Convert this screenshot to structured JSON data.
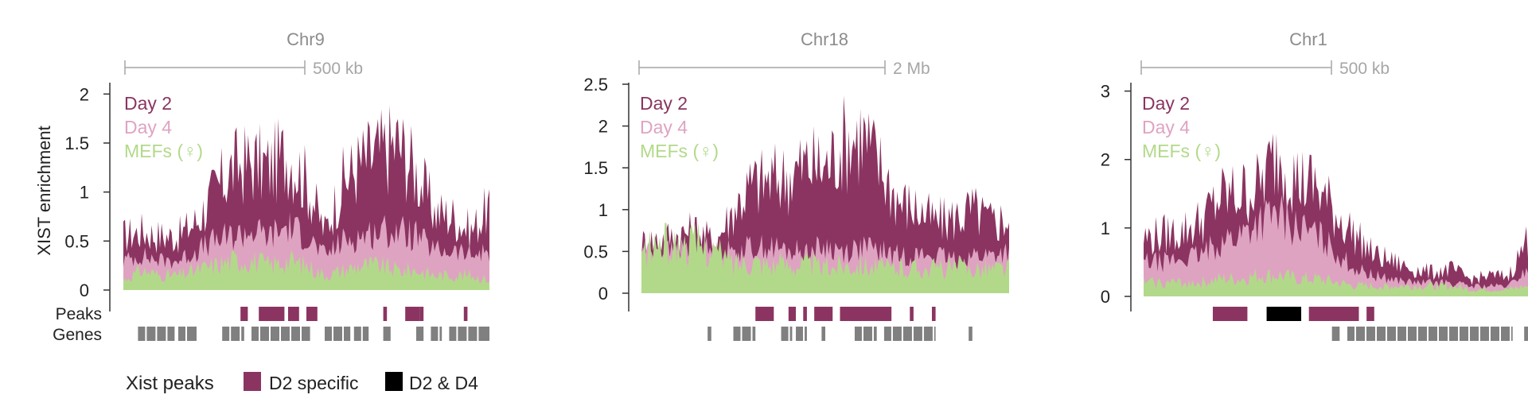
{
  "colors": {
    "day2": "#8b3461",
    "day4": "#dfa3c2",
    "mefs": "#b2d98a",
    "d2_specific": "#8b3461",
    "d2_d4": "#000000",
    "genes": "#808080",
    "axis": "#333333",
    "scale": "#a6a6a6",
    "text": "#222222"
  },
  "row_labels": {
    "peaks": "Peaks",
    "genes": "Genes"
  },
  "y_axis_label": "XIST enrichment",
  "legend": {
    "title": "Xist peaks",
    "d2_specific": "D2 specific",
    "d2_d4": "D2 & D4"
  },
  "chart_data": [
    {
      "type": "area",
      "title": "Chr9",
      "scale_bar": "500 kb",
      "ylabel": "XIST enrichment",
      "ylim": [
        0,
        2.1
      ],
      "yticks": [
        0,
        0.5,
        1,
        1.5,
        2
      ],
      "ytick_labels": [
        "0",
        "0.5",
        "1",
        "1.5",
        "2"
      ],
      "series_labels": [
        "Day 2",
        "Day 4",
        "MEFs (♀)"
      ],
      "x": [
        0,
        0.05,
        0.1,
        0.15,
        0.2,
        0.25,
        0.3,
        0.35,
        0.4,
        0.45,
        0.5,
        0.55,
        0.6,
        0.65,
        0.7,
        0.75,
        0.8,
        0.85,
        0.9,
        0.95,
        1
      ],
      "series": [
        {
          "name": "Day 2",
          "values": [
            0.55,
            0.6,
            0.55,
            0.55,
            0.7,
            1.0,
            1.25,
            1.3,
            1.25,
            1.4,
            1.1,
            0.6,
            1.1,
            1.3,
            1.4,
            1.5,
            1.2,
            0.8,
            0.75,
            0.6,
            0.85
          ]
        },
        {
          "name": "Day 4",
          "values": [
            0.3,
            0.35,
            0.3,
            0.3,
            0.4,
            0.5,
            0.55,
            0.6,
            0.55,
            0.65,
            0.55,
            0.35,
            0.5,
            0.55,
            0.6,
            0.6,
            0.55,
            0.4,
            0.4,
            0.35,
            0.4
          ]
        },
        {
          "name": "MEFs (♀)",
          "values": [
            0.1,
            0.2,
            0.15,
            0.15,
            0.2,
            0.25,
            0.3,
            0.3,
            0.25,
            0.3,
            0.25,
            0.15,
            0.2,
            0.25,
            0.25,
            0.2,
            0.2,
            0.15,
            0.15,
            0.15,
            0.1
          ]
        }
      ],
      "peaks": [
        {
          "start": 0.32,
          "end": 0.34,
          "kind": "D2 specific"
        },
        {
          "start": 0.37,
          "end": 0.44,
          "kind": "D2 specific"
        },
        {
          "start": 0.45,
          "end": 0.48,
          "kind": "D2 specific"
        },
        {
          "start": 0.5,
          "end": 0.53,
          "kind": "D2 specific"
        },
        {
          "start": 0.71,
          "end": 0.72,
          "kind": "D2 specific"
        },
        {
          "start": 0.77,
          "end": 0.81,
          "kind": "D2 specific"
        },
        {
          "start": 0.81,
          "end": 0.82,
          "kind": "D2 specific"
        },
        {
          "start": 0.93,
          "end": 0.94,
          "kind": "D2 specific"
        }
      ],
      "genes": [
        {
          "start": 0.04,
          "end": 0.14
        },
        {
          "start": 0.15,
          "end": 0.2
        },
        {
          "start": 0.27,
          "end": 0.33
        },
        {
          "start": 0.35,
          "end": 0.51
        },
        {
          "start": 0.55,
          "end": 0.62
        },
        {
          "start": 0.63,
          "end": 0.67
        },
        {
          "start": 0.71,
          "end": 0.73
        },
        {
          "start": 0.8,
          "end": 0.82
        },
        {
          "start": 0.84,
          "end": 0.87
        },
        {
          "start": 0.89,
          "end": 1.0
        }
      ]
    },
    {
      "type": "area",
      "title": "Chr18",
      "scale_bar": "2 Mb",
      "ylim": [
        0,
        2.5
      ],
      "yticks": [
        0,
        0.5,
        1,
        1.5,
        2,
        2.5
      ],
      "ytick_labels": [
        "0",
        "0.5",
        "1",
        "1.5",
        "2",
        "2.5"
      ],
      "series_labels": [
        "Day 2",
        "Day 4",
        "MEFs (♀)"
      ],
      "x": [
        0,
        0.05,
        0.1,
        0.15,
        0.2,
        0.25,
        0.3,
        0.35,
        0.4,
        0.45,
        0.5,
        0.55,
        0.6,
        0.65,
        0.7,
        0.75,
        0.8,
        0.85,
        0.9,
        0.95,
        1
      ],
      "series": [
        {
          "name": "Day 2",
          "values": [
            0.6,
            0.65,
            0.7,
            0.75,
            0.6,
            1.0,
            1.3,
            1.35,
            1.4,
            1.55,
            1.5,
            1.8,
            1.9,
            1.5,
            1.1,
            1.0,
            0.85,
            0.9,
            1.0,
            0.85,
            0.9
          ]
        },
        {
          "name": "Day 4",
          "values": [
            0.5,
            0.5,
            0.5,
            0.55,
            0.5,
            0.5,
            0.55,
            0.55,
            0.5,
            0.5,
            0.55,
            0.5,
            0.55,
            0.5,
            0.45,
            0.45,
            0.45,
            0.4,
            0.45,
            0.45,
            0.5
          ]
        },
        {
          "name": "MEFs (♀)",
          "values": [
            0.45,
            0.6,
            0.55,
            0.6,
            0.5,
            0.35,
            0.4,
            0.35,
            0.35,
            0.35,
            0.3,
            0.35,
            0.35,
            0.3,
            0.3,
            0.3,
            0.3,
            0.3,
            0.3,
            0.3,
            0.3
          ]
        }
      ],
      "peaks": [
        {
          "start": 0.31,
          "end": 0.36,
          "kind": "D2 specific"
        },
        {
          "start": 0.4,
          "end": 0.42,
          "kind": "D2 specific"
        },
        {
          "start": 0.44,
          "end": 0.45,
          "kind": "D2 specific"
        },
        {
          "start": 0.47,
          "end": 0.52,
          "kind": "D2 specific"
        },
        {
          "start": 0.54,
          "end": 0.68,
          "kind": "D2 specific"
        },
        {
          "start": 0.73,
          "end": 0.74,
          "kind": "D2 specific"
        },
        {
          "start": 0.79,
          "end": 0.8,
          "kind": "D2 specific"
        }
      ],
      "genes": [
        {
          "start": 0.18,
          "end": 0.19
        },
        {
          "start": 0.25,
          "end": 0.31
        },
        {
          "start": 0.38,
          "end": 0.41
        },
        {
          "start": 0.42,
          "end": 0.45
        },
        {
          "start": 0.49,
          "end": 0.5
        },
        {
          "start": 0.58,
          "end": 0.64
        },
        {
          "start": 0.66,
          "end": 0.8
        },
        {
          "start": 0.89,
          "end": 0.9
        }
      ]
    },
    {
      "type": "area",
      "title": "Chr1",
      "scale_bar": "500 kb",
      "ylim": [
        0,
        3.1
      ],
      "yticks": [
        0,
        1,
        2,
        3
      ],
      "ytick_labels": [
        "0",
        "1",
        "2",
        "3"
      ],
      "series_labels": [
        "Day 2",
        "Day 4",
        "MEFs (♀)"
      ],
      "x": [
        0,
        0.05,
        0.1,
        0.15,
        0.2,
        0.25,
        0.3,
        0.35,
        0.4,
        0.45,
        0.5,
        0.55,
        0.6,
        0.65,
        0.7,
        0.75,
        0.8,
        0.85,
        0.9,
        0.95,
        1
      ],
      "series": [
        {
          "name": "Day 2",
          "values": [
            0.85,
            0.9,
            0.95,
            1.1,
            1.45,
            1.5,
            1.6,
            2.1,
            1.7,
            1.6,
            1.2,
            0.9,
            0.6,
            0.5,
            0.4,
            0.35,
            0.4,
            0.25,
            0.3,
            0.3,
            0.85
          ]
        },
        {
          "name": "Day 4",
          "values": [
            0.5,
            0.5,
            0.55,
            0.6,
            0.8,
            0.9,
            1.1,
            1.2,
            1.0,
            0.9,
            0.65,
            0.4,
            0.3,
            0.25,
            0.2,
            0.2,
            0.2,
            0.15,
            0.15,
            0.15,
            0.4
          ]
        },
        {
          "name": "MEFs (♀)",
          "values": [
            0.2,
            0.2,
            0.2,
            0.2,
            0.25,
            0.25,
            0.3,
            0.3,
            0.25,
            0.25,
            0.2,
            0.15,
            0.15,
            0.15,
            0.15,
            0.15,
            0.15,
            0.1,
            0.1,
            0.1,
            0.15
          ]
        }
      ],
      "peaks": [
        {
          "start": 0.18,
          "end": 0.27,
          "kind": "D2 specific"
        },
        {
          "start": 0.32,
          "end": 0.41,
          "kind": "D2 & D4"
        },
        {
          "start": 0.43,
          "end": 0.56,
          "kind": "D2 specific"
        },
        {
          "start": 0.58,
          "end": 0.6,
          "kind": "D2 specific"
        }
      ],
      "genes": [
        {
          "start": 0.49,
          "end": 0.51
        },
        {
          "start": 0.53,
          "end": 0.96
        },
        {
          "start": 0.99,
          "end": 1.0
        }
      ]
    }
  ]
}
